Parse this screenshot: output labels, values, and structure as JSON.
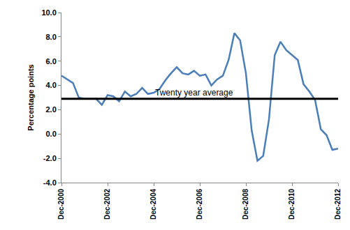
{
  "chart_data": {
    "type": "line",
    "y_label": "Percentage points",
    "categories": [
      "Dec-2000",
      null,
      null,
      null,
      null,
      null,
      null,
      null,
      "Dec-2002",
      null,
      null,
      null,
      null,
      null,
      null,
      null,
      "Dec-2004",
      null,
      null,
      null,
      null,
      null,
      null,
      null,
      "Dec-2006",
      null,
      null,
      null,
      null,
      null,
      null,
      null,
      "Dec-2008",
      null,
      null,
      null,
      null,
      null,
      null,
      null,
      "Dec-2010",
      null,
      null,
      null,
      null,
      null,
      null,
      null,
      "Dec-2012"
    ],
    "values": [
      4.8,
      4.5,
      4.2,
      3.0,
      2.9,
      2.9,
      2.9,
      2.4,
      3.2,
      3.1,
      2.7,
      3.5,
      3.1,
      3.3,
      3.8,
      3.3,
      3.4,
      3.7,
      4.4,
      5.0,
      5.5,
      5.0,
      4.9,
      5.2,
      4.8,
      4.9,
      4.0,
      4.5,
      4.8,
      6.1,
      8.3,
      7.7,
      5.0,
      0.3,
      -2.2,
      -1.8,
      1.2,
      6.5,
      7.6,
      6.9,
      6.5,
      6.1,
      4.1,
      3.5,
      2.8,
      0.4,
      -0.1,
      -1.3,
      -1.2
    ],
    "color": "#4a7ebb",
    "ylim": [
      -4,
      10
    ],
    "yticks": [
      {
        "value": -4,
        "label": "-4.0"
      },
      {
        "value": -2,
        "label": "-2.0"
      },
      {
        "value": 0,
        "label": "0.0"
      },
      {
        "value": 2,
        "label": "2.0"
      },
      {
        "value": 4,
        "label": "4.0"
      },
      {
        "value": 6,
        "label": "6.0"
      },
      {
        "value": 8,
        "label": "8.0"
      },
      {
        "value": 10,
        "label": "10.0"
      }
    ],
    "grid": false,
    "reference_lines": [
      {
        "value": 2.9,
        "label": "Twenty year average",
        "color": "#000000"
      }
    ]
  }
}
